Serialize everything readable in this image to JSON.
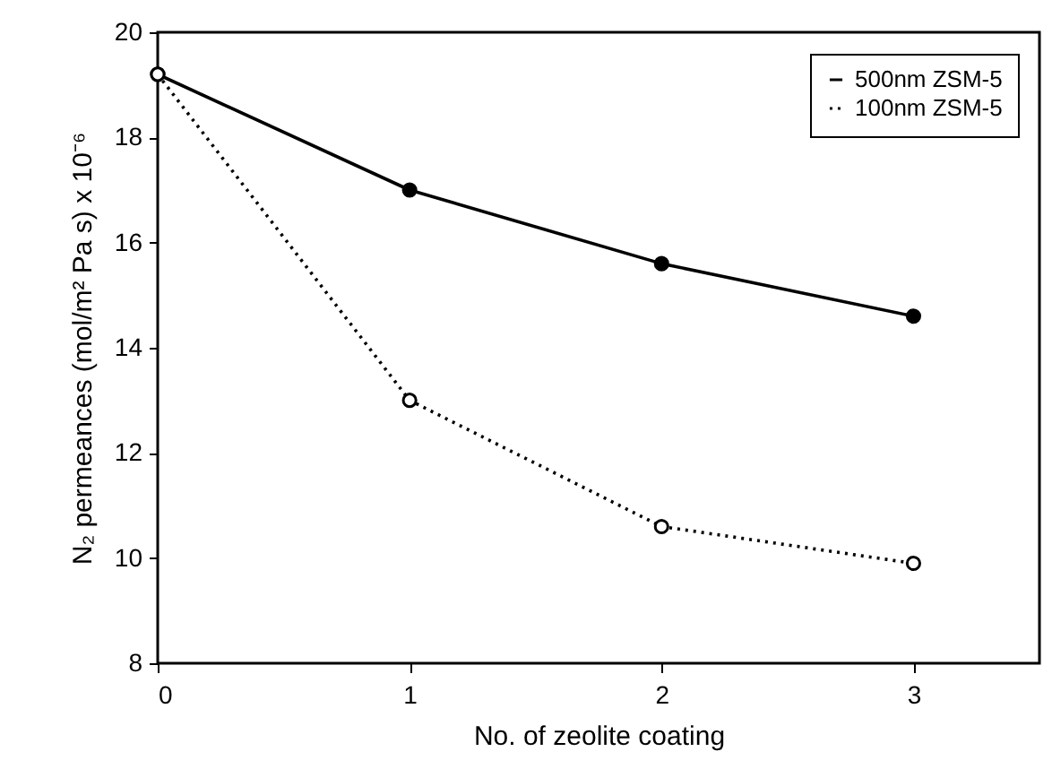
{
  "chart_data": {
    "type": "line",
    "xlabel": "No. of zeolite coating",
    "ylabel": "N₂ permeances (mol/m² Pa s) x 10⁻⁶",
    "x": [
      0,
      1,
      2,
      3
    ],
    "series": [
      {
        "name": "500nm ZSM-5",
        "color": "#000000",
        "line_style": "solid",
        "values": [
          19.2,
          17.0,
          15.6,
          14.6
        ]
      },
      {
        "name": "100nm ZSM-5",
        "color": "#000000",
        "line_style": "dotted",
        "values": [
          19.2,
          13.0,
          10.6,
          9.9
        ]
      }
    ],
    "xlim": [
      0,
      3.5
    ],
    "xticks": [
      0,
      1,
      2,
      3
    ],
    "ylim": [
      8,
      20
    ],
    "yticks": [
      8,
      10,
      12,
      14,
      16,
      18,
      20
    ],
    "grid": false,
    "legend": "top right",
    "marker": "circle"
  }
}
